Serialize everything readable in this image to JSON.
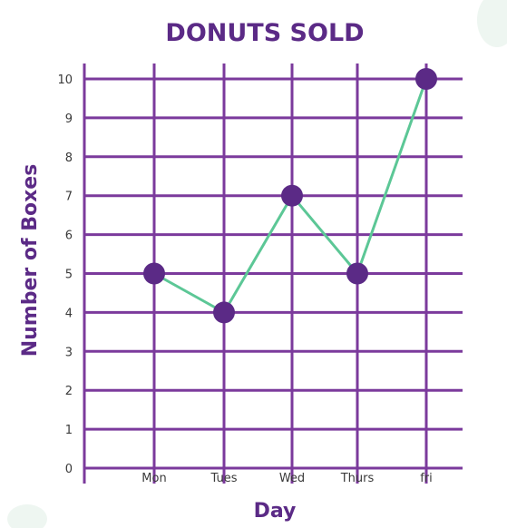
{
  "chart_data": {
    "type": "line",
    "title": "DONUTS SOLD",
    "xlabel": "Day",
    "ylabel": "Number of Boxes",
    "categories": [
      "Mon",
      "Tues",
      "Wed",
      "Thurs",
      "fri"
    ],
    "values": [
      5,
      4,
      7,
      5,
      10
    ],
    "ylim": [
      0,
      10
    ],
    "yticks": [
      "0",
      "1",
      "2",
      "3",
      "4",
      "5",
      "6",
      "7",
      "8",
      "9",
      "10"
    ],
    "grid": true,
    "legend": "none",
    "colors": {
      "title": "#5b2a86",
      "grid": "#7b3a9c",
      "line": "#5cc796",
      "points": "#5b2a86"
    }
  }
}
